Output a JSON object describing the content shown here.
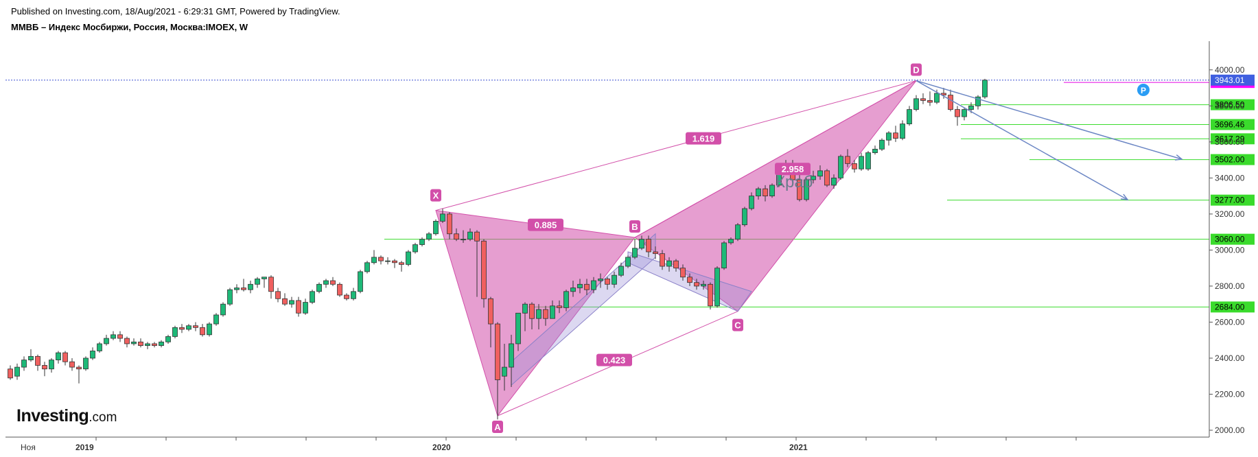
{
  "header": {
    "published": "Published on Investing.com, 18/Aug/2021 - 6:29:31 GMT, Powered by TradingView.",
    "symbol": "ММВБ – Индекс Мосбиржи, Россия, Москва:IMOEX, W"
  },
  "logo": {
    "main": "Investing",
    "suffix": ".com"
  },
  "chart_data": {
    "type": "candlestick",
    "timeframe": "W",
    "y_range": [
      1980,
      4080
    ],
    "y_ticks": [
      "2000.00",
      "2200.00",
      "2400.00",
      "2600.00",
      "2800.00",
      "3000.00",
      "3200.00",
      "3400.00",
      "3600.00",
      "3800.00",
      "4000.00"
    ],
    "x_labels": [
      {
        "text": "Ноя",
        "bar": 0,
        "bold": false
      },
      {
        "text": "2019",
        "bar": 9,
        "bold": true
      },
      {
        "text": "2020",
        "bar": 61,
        "bold": true
      },
      {
        "text": "2021",
        "bar": 113,
        "bold": true
      }
    ],
    "colors": {
      "up": "#1eb978",
      "down": "#f0605f",
      "outline": "#333333",
      "pattern": "#d24fa9",
      "grid_level": "#3adb2c",
      "arrow": "#6b86c4"
    },
    "candles": [
      [
        2340,
        2290,
        2360,
        2280
      ],
      [
        2300,
        2350,
        2370,
        2280
      ],
      [
        2350,
        2390,
        2410,
        2330
      ],
      [
        2390,
        2410,
        2450,
        2380
      ],
      [
        2410,
        2360,
        2420,
        2330
      ],
      [
        2360,
        2340,
        2380,
        2300
      ],
      [
        2340,
        2390,
        2400,
        2320
      ],
      [
        2390,
        2430,
        2440,
        2370
      ],
      [
        2430,
        2380,
        2440,
        2360
      ],
      [
        2380,
        2350,
        2400,
        2330
      ],
      [
        2350,
        2340,
        2360,
        2260
      ],
      [
        2340,
        2400,
        2410,
        2330
      ],
      [
        2400,
        2440,
        2460,
        2390
      ],
      [
        2440,
        2480,
        2490,
        2430
      ],
      [
        2480,
        2510,
        2530,
        2470
      ],
      [
        2510,
        2530,
        2550,
        2500
      ],
      [
        2530,
        2510,
        2550,
        2490
      ],
      [
        2510,
        2480,
        2520,
        2460
      ],
      [
        2480,
        2490,
        2510,
        2470
      ],
      [
        2490,
        2470,
        2510,
        2460
      ],
      [
        2470,
        2480,
        2490,
        2450
      ],
      [
        2480,
        2470,
        2490,
        2460
      ],
      [
        2470,
        2490,
        2500,
        2460
      ],
      [
        2490,
        2520,
        2530,
        2480
      ],
      [
        2520,
        2570,
        2580,
        2510
      ],
      [
        2570,
        2560,
        2590,
        2540
      ],
      [
        2560,
        2580,
        2590,
        2550
      ],
      [
        2580,
        2570,
        2600,
        2550
      ],
      [
        2570,
        2530,
        2590,
        2520
      ],
      [
        2530,
        2590,
        2600,
        2520
      ],
      [
        2590,
        2640,
        2650,
        2580
      ],
      [
        2640,
        2700,
        2710,
        2630
      ],
      [
        2700,
        2780,
        2790,
        2690
      ],
      [
        2780,
        2790,
        2810,
        2760
      ],
      [
        2790,
        2780,
        2840,
        2770
      ],
      [
        2780,
        2810,
        2830,
        2760
      ],
      [
        2810,
        2840,
        2850,
        2790
      ],
      [
        2840,
        2850,
        2850,
        2790
      ],
      [
        2850,
        2770,
        2860,
        2730
      ],
      [
        2770,
        2730,
        2790,
        2710
      ],
      [
        2730,
        2700,
        2760,
        2690
      ],
      [
        2700,
        2720,
        2740,
        2680
      ],
      [
        2720,
        2650,
        2740,
        2630
      ],
      [
        2650,
        2710,
        2730,
        2640
      ],
      [
        2710,
        2770,
        2780,
        2700
      ],
      [
        2770,
        2810,
        2820,
        2760
      ],
      [
        2810,
        2830,
        2840,
        2790
      ],
      [
        2830,
        2810,
        2850,
        2800
      ],
      [
        2810,
        2750,
        2820,
        2740
      ],
      [
        2750,
        2730,
        2760,
        2720
      ],
      [
        2730,
        2770,
        2790,
        2720
      ],
      [
        2770,
        2880,
        2890,
        2760
      ],
      [
        2880,
        2930,
        2940,
        2870
      ],
      [
        2930,
        2960,
        3000,
        2920
      ],
      [
        2960,
        2940,
        2970,
        2920
      ],
      [
        2940,
        2940,
        2960,
        2920
      ],
      [
        2940,
        2930,
        2950,
        2900
      ],
      [
        2930,
        2920,
        2940,
        2880
      ],
      [
        2920,
        2990,
        3000,
        2910
      ],
      [
        2990,
        3030,
        3040,
        2980
      ],
      [
        3030,
        3060,
        3070,
        3020
      ],
      [
        3060,
        3090,
        3100,
        3050
      ],
      [
        3090,
        3160,
        3170,
        3080
      ],
      [
        3160,
        3200,
        3230,
        3150
      ],
      [
        3200,
        3090,
        3210,
        3060
      ],
      [
        3090,
        3060,
        3120,
        3050
      ],
      [
        3060,
        3060,
        3110,
        3040
      ],
      [
        3060,
        3100,
        3120,
        3050
      ],
      [
        3100,
        3050,
        3110,
        2740
      ],
      [
        3050,
        2730,
        3060,
        2680
      ],
      [
        2730,
        2590,
        2740,
        2460
      ],
      [
        2590,
        2280,
        2600,
        2060
      ],
      [
        2300,
        2350,
        2480,
        2220
      ],
      [
        2350,
        2480,
        2530,
        2240
      ],
      [
        2480,
        2650,
        2650,
        2440
      ],
      [
        2650,
        2700,
        2710,
        2550
      ],
      [
        2700,
        2620,
        2710,
        2560
      ],
      [
        2620,
        2670,
        2700,
        2560
      ],
      [
        2670,
        2620,
        2690,
        2580
      ],
      [
        2620,
        2690,
        2720,
        2620
      ],
      [
        2690,
        2680,
        2720,
        2650
      ],
      [
        2680,
        2770,
        2780,
        2660
      ],
      [
        2770,
        2790,
        2830,
        2740
      ],
      [
        2790,
        2810,
        2840,
        2760
      ],
      [
        2810,
        2780,
        2840,
        2750
      ],
      [
        2780,
        2830,
        2850,
        2760
      ],
      [
        2830,
        2840,
        2870,
        2790
      ],
      [
        2840,
        2810,
        2850,
        2780
      ],
      [
        2810,
        2860,
        2880,
        2790
      ],
      [
        2860,
        2910,
        2930,
        2850
      ],
      [
        2910,
        2960,
        2970,
        2900
      ],
      [
        2960,
        3010,
        3060,
        2950
      ],
      [
        3010,
        3060,
        3080,
        3000
      ],
      [
        3060,
        2990,
        3080,
        2960
      ],
      [
        2990,
        2980,
        3020,
        2950
      ],
      [
        2980,
        2910,
        3000,
        2890
      ],
      [
        2910,
        2940,
        2960,
        2880
      ],
      [
        2940,
        2900,
        2950,
        2880
      ],
      [
        2900,
        2850,
        2920,
        2830
      ],
      [
        2850,
        2820,
        2870,
        2800
      ],
      [
        2820,
        2800,
        2840,
        2780
      ],
      [
        2800,
        2810,
        2830,
        2780
      ],
      [
        2810,
        2690,
        2820,
        2670
      ],
      [
        2690,
        2900,
        2910,
        2680
      ],
      [
        2900,
        3040,
        3050,
        2890
      ],
      [
        3040,
        3060,
        3070,
        3030
      ],
      [
        3060,
        3140,
        3150,
        3050
      ],
      [
        3140,
        3230,
        3240,
        3130
      ],
      [
        3230,
        3300,
        3320,
        3220
      ],
      [
        3300,
        3340,
        3350,
        3280
      ],
      [
        3340,
        3300,
        3360,
        3270
      ],
      [
        3300,
        3360,
        3370,
        3290
      ],
      [
        3360,
        3460,
        3480,
        3350
      ],
      [
        3460,
        3480,
        3500,
        3440
      ],
      [
        3480,
        3390,
        3500,
        3380
      ],
      [
        3390,
        3280,
        3420,
        3270
      ],
      [
        3280,
        3390,
        3400,
        3270
      ],
      [
        3390,
        3410,
        3440,
        3370
      ],
      [
        3410,
        3440,
        3470,
        3390
      ],
      [
        3440,
        3360,
        3450,
        3350
      ],
      [
        3360,
        3400,
        3420,
        3340
      ],
      [
        3400,
        3520,
        3530,
        3390
      ],
      [
        3520,
        3480,
        3560,
        3460
      ],
      [
        3480,
        3450,
        3500,
        3430
      ],
      [
        3450,
        3520,
        3540,
        3440
      ],
      [
        3450,
        3540,
        3550,
        3440
      ],
      [
        3540,
        3560,
        3580,
        3530
      ],
      [
        3560,
        3610,
        3620,
        3550
      ],
      [
        3610,
        3650,
        3660,
        3580
      ],
      [
        3650,
        3620,
        3690,
        3600
      ],
      [
        3620,
        3700,
        3720,
        3610
      ],
      [
        3700,
        3780,
        3800,
        3690
      ],
      [
        3780,
        3840,
        3860,
        3770
      ],
      [
        3840,
        3830,
        3870,
        3810
      ],
      [
        3830,
        3820,
        3880,
        3800
      ],
      [
        3820,
        3870,
        3890,
        3810
      ],
      [
        3870,
        3860,
        3900,
        3840
      ],
      [
        3860,
        3780,
        3890,
        3770
      ],
      [
        3780,
        3740,
        3800,
        3690
      ],
      [
        3740,
        3780,
        3790,
        3720
      ],
      [
        3780,
        3800,
        3820,
        3760
      ],
      [
        3800,
        3850,
        3860,
        3780
      ],
      [
        3850,
        3943,
        3950,
        3840
      ]
    ],
    "pattern": {
      "name": "Краб",
      "points": [
        {
          "label": "X",
          "bar": 62,
          "price": 3220
        },
        {
          "label": "A",
          "bar": 71,
          "price": 2080
        },
        {
          "label": "B",
          "bar": 91,
          "price": 3070
        },
        {
          "label": "C",
          "bar": 106,
          "price": 2660
        },
        {
          "label": "D",
          "bar": 132,
          "price": 3940
        }
      ],
      "ratios": [
        {
          "value": "0.885",
          "from": "XA",
          "to": "B"
        },
        {
          "value": "1.619",
          "from": "X",
          "to": "D"
        },
        {
          "value": "0.423",
          "from": "A",
          "to": "C"
        },
        {
          "value": "2.958",
          "from": "B",
          "to": "D"
        }
      ]
    },
    "levels": [
      "3806.50",
      "3696.46",
      "3617.29",
      "3502.00",
      "3277.00",
      "3060.00",
      "2684.00"
    ],
    "current_price": "3943.01",
    "alert_price": "3930.00",
    "p_marker": "P"
  }
}
